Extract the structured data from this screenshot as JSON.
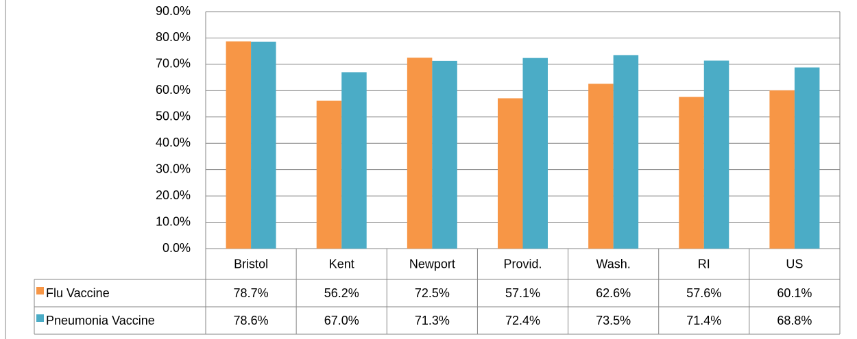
{
  "chart_data": {
    "type": "bar",
    "categories": [
      "Bristol",
      "Kent",
      "Newport",
      "Provid.",
      "Wash.",
      "RI",
      "US"
    ],
    "series": [
      {
        "name": "Flu Vaccine",
        "color": "#f79646",
        "values": [
          78.7,
          56.2,
          72.5,
          57.1,
          62.6,
          57.6,
          60.1
        ],
        "value_labels": [
          "78.7%",
          "56.2%",
          "72.5%",
          "57.1%",
          "62.6%",
          "57.6%",
          "60.1%"
        ]
      },
      {
        "name": "Pneumonia Vaccine",
        "color": "#4bacc6",
        "values": [
          78.6,
          67.0,
          71.3,
          72.4,
          73.5,
          71.4,
          68.8
        ],
        "value_labels": [
          "78.6%",
          "67.0%",
          "71.3%",
          "72.4%",
          "73.5%",
          "71.4%",
          "68.8%"
        ]
      }
    ],
    "ylim": [
      0,
      90
    ],
    "yticks": [
      {
        "value": 0,
        "label": "0.0%"
      },
      {
        "value": 10,
        "label": "10.0%"
      },
      {
        "value": 20,
        "label": "20.0%"
      },
      {
        "value": 30,
        "label": "30.0%"
      },
      {
        "value": 40,
        "label": "40.0%"
      },
      {
        "value": 50,
        "label": "50.0%"
      },
      {
        "value": 60,
        "label": "60.0%"
      },
      {
        "value": 70,
        "label": "70.0%"
      },
      {
        "value": 80,
        "label": "80.0%"
      },
      {
        "value": 90,
        "label": "90.0%"
      }
    ],
    "grid": true
  }
}
